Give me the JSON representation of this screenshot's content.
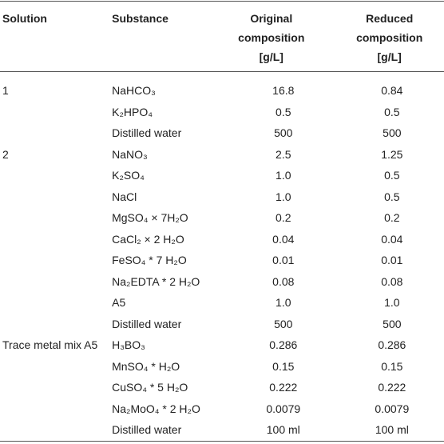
{
  "table": {
    "header": [
      "Solution",
      "Substance",
      "Original composition [g/L]",
      "Reduced composition [g/L]"
    ],
    "rows": [
      [
        "1",
        "NaHCO₃",
        "16.8",
        "0.84"
      ],
      [
        null,
        "K₂HPO₄",
        "0.5",
        "0.5"
      ],
      [
        null,
        "Distilled water",
        "500",
        "500"
      ],
      [
        "2",
        "NaNO₃",
        "2.5",
        "1.25"
      ],
      [
        null,
        "K₂SO₄",
        "1.0",
        "0.5"
      ],
      [
        null,
        "NaCl",
        "1.0",
        "0.5"
      ],
      [
        null,
        "MgSO₄ × 7H₂O",
        "0.2",
        "0.2"
      ],
      [
        null,
        "CaCl₂ × 2 H₂O",
        "0.04",
        "0.04"
      ],
      [
        null,
        "FeSO₄ * 7 H₂O",
        "0.01",
        "0.01"
      ],
      [
        null,
        "Na₂EDTA * 2 H₂O",
        "0.08",
        "0.08"
      ],
      [
        null,
        "A5",
        "1.0",
        "1.0"
      ],
      [
        null,
        "Distilled water",
        "500",
        "500"
      ],
      [
        "Trace metal mix A5",
        "H₃BO₃",
        "0.286",
        "0.286"
      ],
      [
        null,
        "MnSO₄ * H₂O",
        "0.15",
        "0.15"
      ],
      [
        null,
        "CuSO₄ * 5 H₂O",
        "0.222",
        "0.222"
      ],
      [
        null,
        "Na₂MoO₄ * 2 H₂O",
        "0.0079",
        "0.0079"
      ],
      [
        null,
        "Distilled water",
        "100 ml",
        "100 ml"
      ]
    ]
  }
}
